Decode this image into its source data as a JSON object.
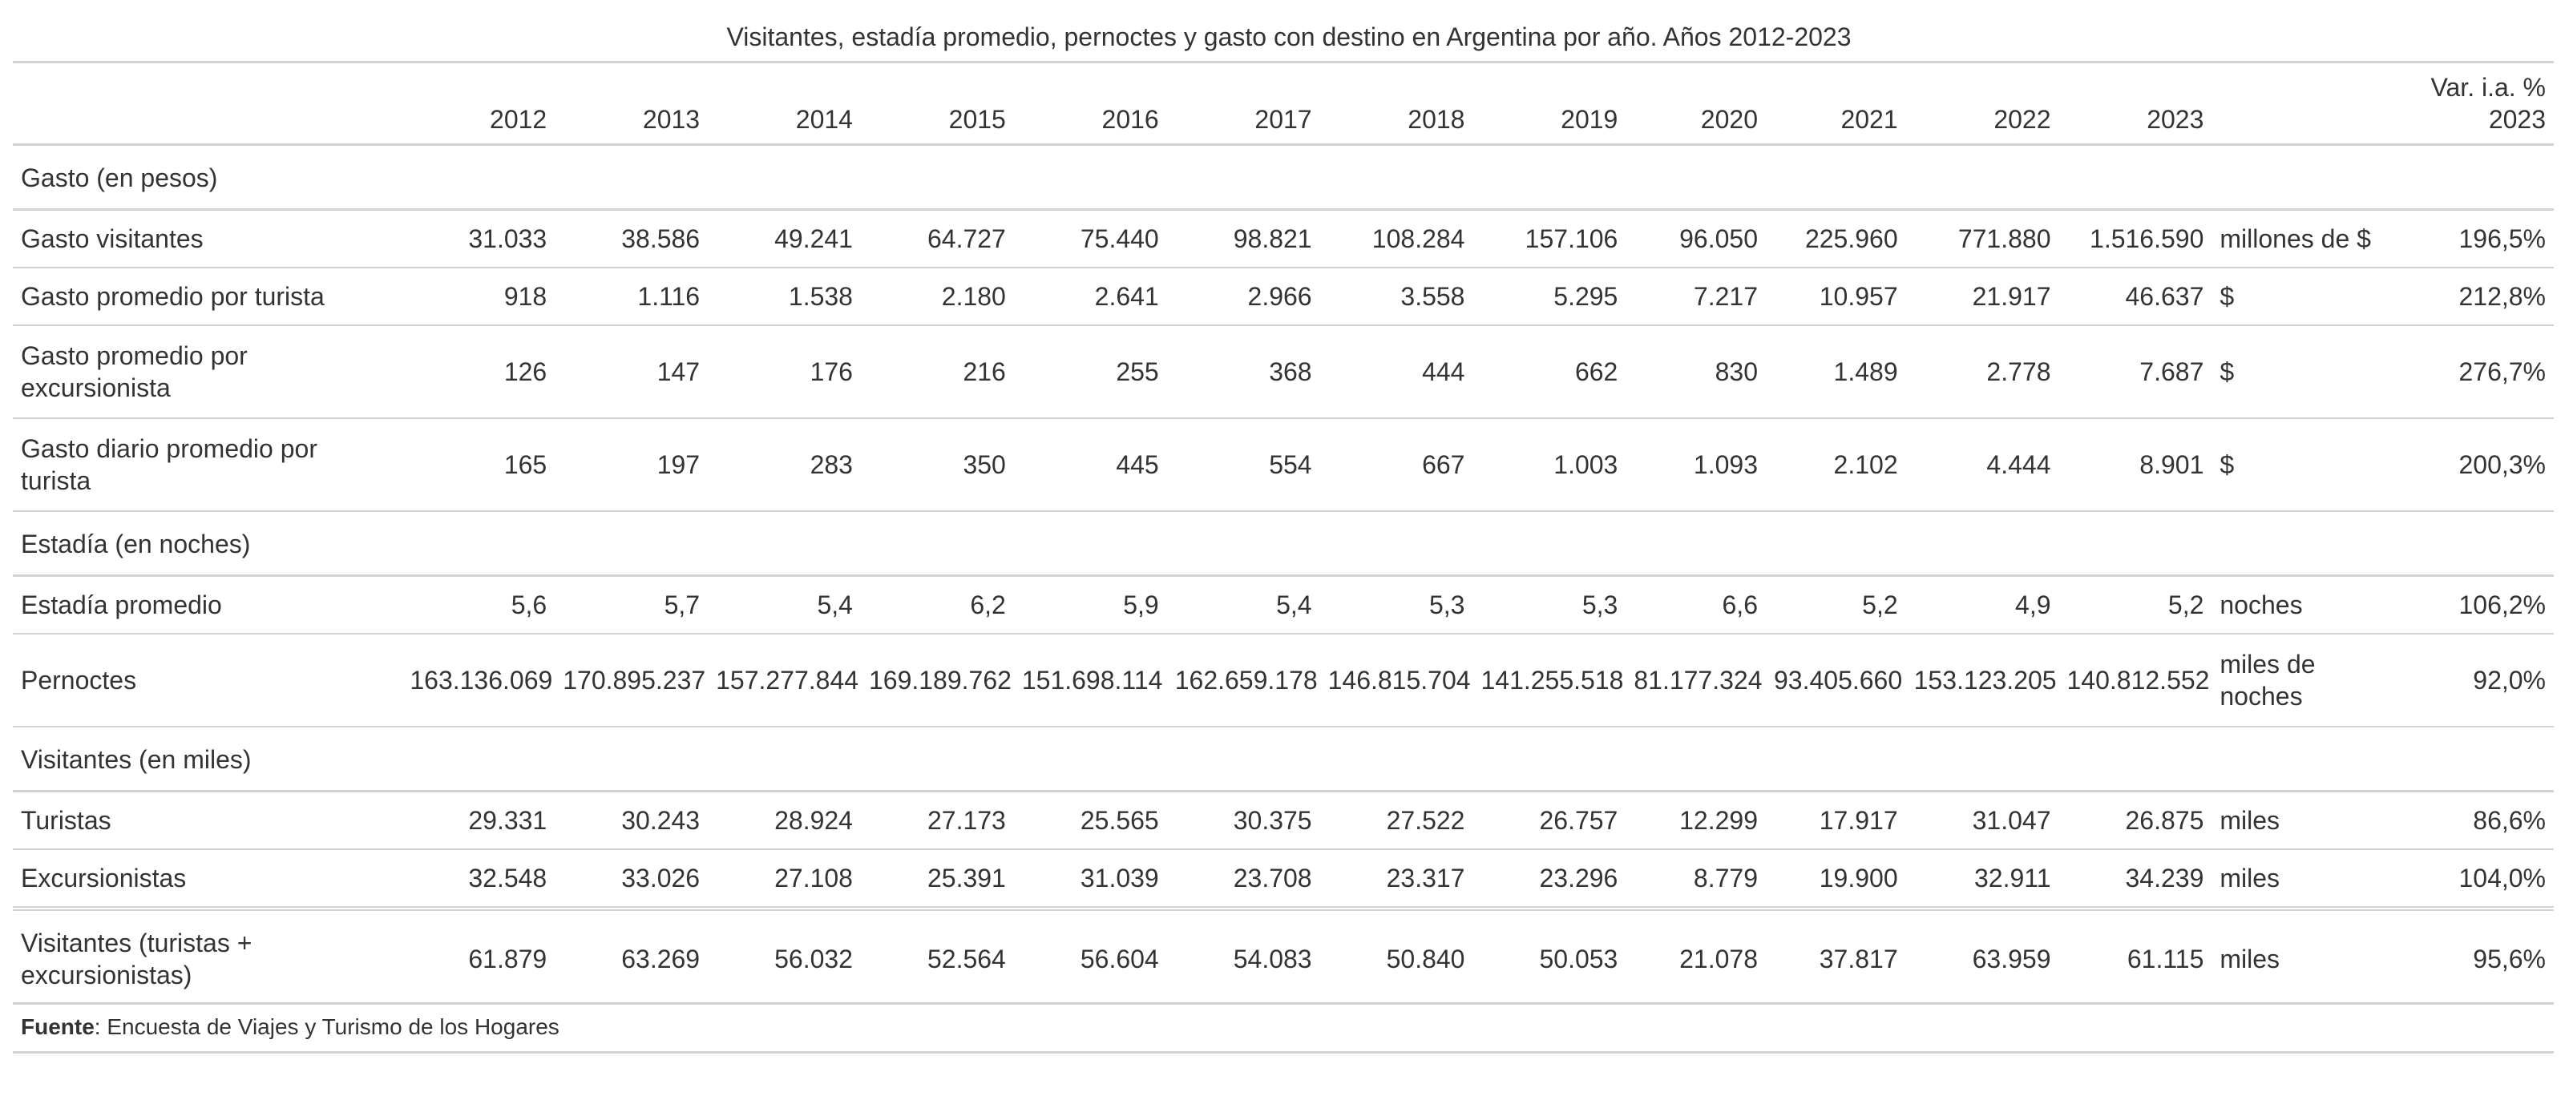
{
  "title": "Visitantes, estadía promedio, pernoctes y gasto con destino en Argentina por año. Años 2012-2023",
  "header": {
    "years": [
      "2012",
      "2013",
      "2014",
      "2015",
      "2016",
      "2017",
      "2018",
      "2019",
      "2020",
      "2021",
      "2022",
      "2023"
    ],
    "var_line1": "Var. i.a. %",
    "var_line2": "2023"
  },
  "groups": [
    {
      "label": "Gasto (en pesos)",
      "rows": [
        {
          "label": "Gasto visitantes",
          "values": [
            "31.033",
            "38.586",
            "49.241",
            "64.727",
            "75.440",
            "98.821",
            "108.284",
            "157.106",
            "96.050",
            "225.960",
            "771.880",
            "1.516.590"
          ],
          "unit": "millones de $",
          "var": "196,5%"
        },
        {
          "label": "Gasto promedio por turista",
          "values": [
            "918",
            "1.116",
            "1.538",
            "2.180",
            "2.641",
            "2.966",
            "3.558",
            "5.295",
            "7.217",
            "10.957",
            "21.917",
            "46.637"
          ],
          "unit": "$",
          "var": "212,8%"
        },
        {
          "label": "Gasto promedio por excursionista",
          "values": [
            "126",
            "147",
            "176",
            "216",
            "255",
            "368",
            "444",
            "662",
            "830",
            "1.489",
            "2.778",
            "7.687"
          ],
          "unit": "$",
          "var": "276,7%"
        },
        {
          "label": "Gasto diario promedio por turista",
          "values": [
            "165",
            "197",
            "283",
            "350",
            "445",
            "554",
            "667",
            "1.003",
            "1.093",
            "2.102",
            "4.444",
            "8.901"
          ],
          "unit": "$",
          "var": "200,3%"
        }
      ]
    },
    {
      "label": "Estadía (en noches)",
      "rows": [
        {
          "label": "Estadía promedio",
          "values": [
            "5,6",
            "5,7",
            "5,4",
            "6,2",
            "5,9",
            "5,4",
            "5,3",
            "5,3",
            "6,6",
            "5,2",
            "4,9",
            "5,2"
          ],
          "unit": "noches",
          "var": "106,2%"
        },
        {
          "label": "Pernoctes",
          "values": [
            "163.136.069",
            "170.895.237",
            "157.277.844",
            "169.189.762",
            "151.698.114",
            "162.659.178",
            "146.815.704",
            "141.255.518",
            "81.177.324",
            "93.405.660",
            "153.123.205",
            "140.812.552"
          ],
          "unit": "miles de noches",
          "var": "92,0%"
        }
      ]
    },
    {
      "label": "Visitantes (en miles)",
      "rows": [
        {
          "label": "Turistas",
          "values": [
            "29.331",
            "30.243",
            "28.924",
            "27.173",
            "25.565",
            "30.375",
            "27.522",
            "26.757",
            "12.299",
            "17.917",
            "31.047",
            "26.875"
          ],
          "unit": "miles",
          "var": "86,6%"
        },
        {
          "label": "Excursionistas",
          "values": [
            "32.548",
            "33.026",
            "27.108",
            "25.391",
            "31.039",
            "23.708",
            "23.317",
            "23.296",
            "8.779",
            "19.900",
            "32.911",
            "34.239"
          ],
          "unit": "miles",
          "var": "104,0%"
        }
      ]
    }
  ],
  "total": {
    "label": "Visitantes (turistas + excursionistas)",
    "values": [
      "61.879",
      "63.269",
      "56.032",
      "52.564",
      "56.604",
      "54.083",
      "50.840",
      "50.053",
      "21.078",
      "37.817",
      "63.959",
      "61.115"
    ],
    "unit": "miles",
    "var": "95,6%"
  },
  "source": {
    "bold": "Fuente",
    "text": ": Encuesta de Viajes y Turismo de los Hogares"
  }
}
